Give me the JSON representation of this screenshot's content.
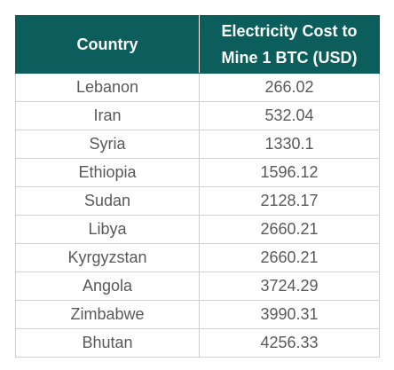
{
  "chart_data": {
    "type": "table",
    "columns": [
      "Country",
      "Electricity Cost to Mine 1 BTC (USD)"
    ],
    "header_lines": [
      "Electricity Cost to",
      "Mine 1 BTC (USD)"
    ],
    "rows": [
      {
        "country": "Lebanon",
        "cost": "266.02"
      },
      {
        "country": "Iran",
        "cost": "532.04"
      },
      {
        "country": "Syria",
        "cost": "1330.1"
      },
      {
        "country": "Ethiopia",
        "cost": "1596.12"
      },
      {
        "country": "Sudan",
        "cost": "2128.17"
      },
      {
        "country": "Libya",
        "cost": "2660.21"
      },
      {
        "country": "Kyrgyzstan",
        "cost": "2660.21"
      },
      {
        "country": "Angola",
        "cost": "3724.29"
      },
      {
        "country": "Zimbabwe",
        "cost": "3990.31"
      },
      {
        "country": "Bhutan",
        "cost": "4256.33"
      }
    ]
  },
  "colors": {
    "header_background": "#0b5e5b",
    "header_text": "#ffffff",
    "body_text": "#595959",
    "grid": "#d0d0d0"
  }
}
